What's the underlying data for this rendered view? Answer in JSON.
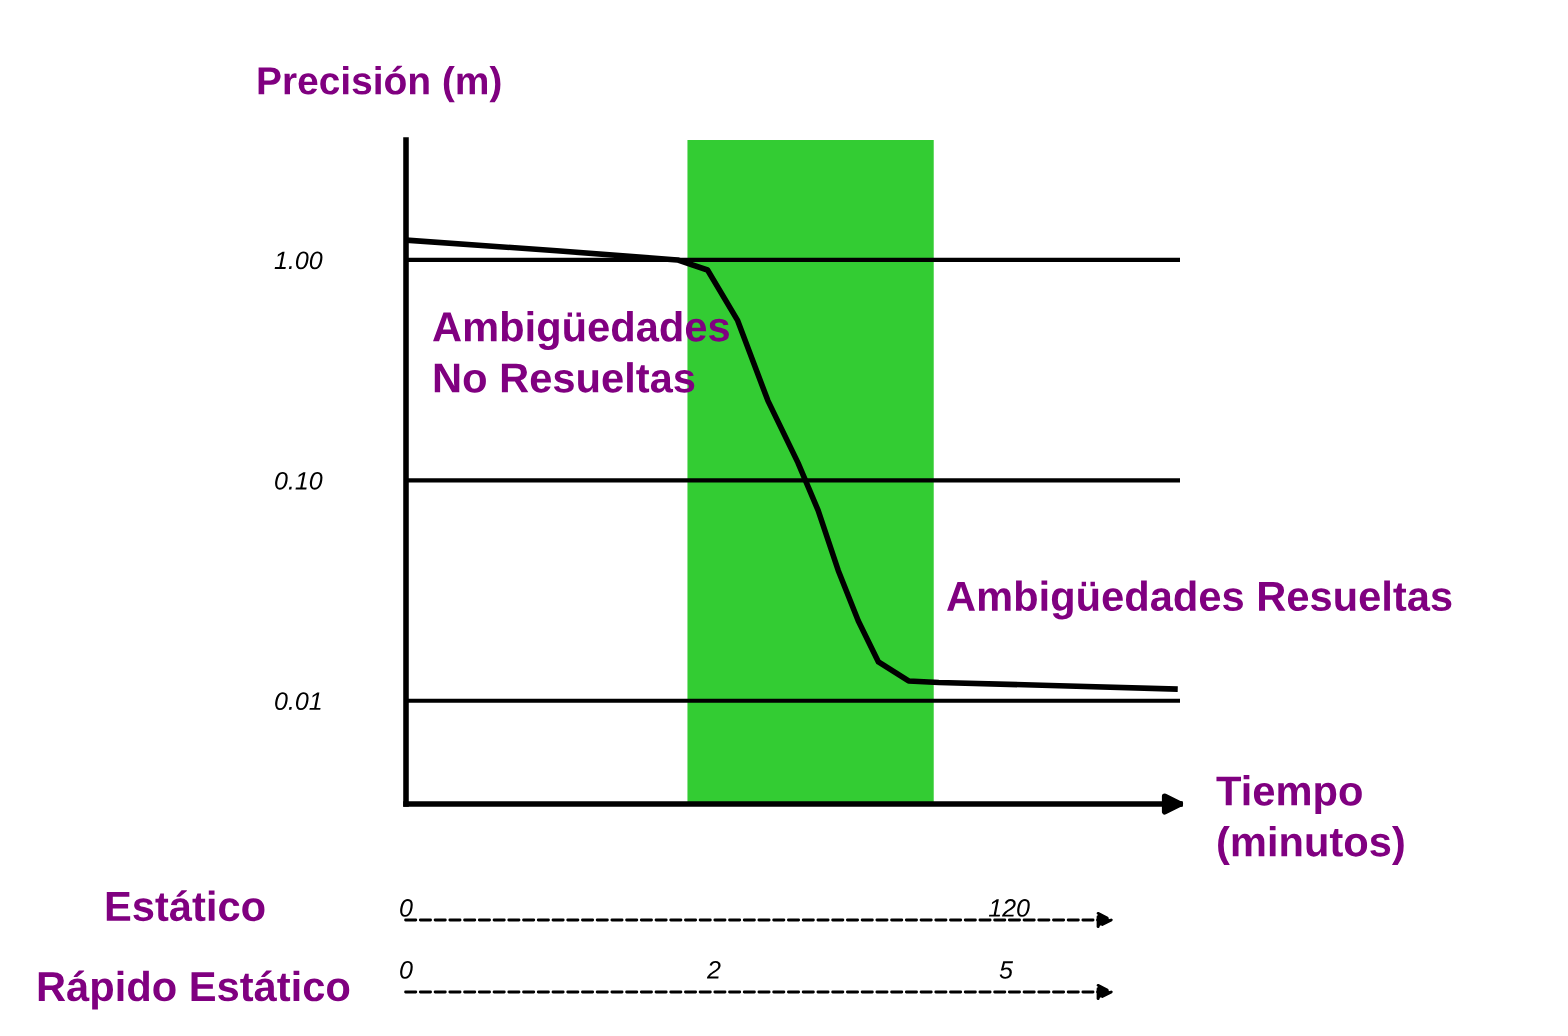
{
  "chart_data": {
    "type": "line",
    "title": "Precisión (m)",
    "xlabel": "Tiempo\n(minutos)",
    "x": [
      0,
      30,
      54,
      60,
      66,
      72,
      78,
      82,
      86,
      90,
      94,
      100,
      106,
      130,
      153
    ],
    "series": [
      {
        "color": "#000000",
        "values": [
          1.23,
          1.1,
          1.0,
          0.9,
          0.53,
          0.23,
          0.12,
          0.073,
          0.039,
          0.023,
          0.015,
          0.0123,
          0.0121,
          0.0117,
          0.0113
        ]
      }
    ],
    "log": "y",
    "xlim": [
      0,
      154
    ],
    "ylim": [
      0.0034,
      3.5
    ],
    "xticks": [
      0,
      120
    ],
    "yticks": [
      {
        "value": 1,
        "label": "1.00"
      },
      {
        "value": 0.1,
        "label": "0.10"
      },
      {
        "value": 0.01,
        "label": "0.01"
      }
    ],
    "grid": "y",
    "marker": "none",
    "line_style": "solid",
    "bands": [
      {
        "axis": "x",
        "from": 56,
        "to": 105,
        "color": "#33cc33"
      }
    ],
    "annotations": [
      "Ambigüedades\nNo Resueltas",
      "Ambigüedades Resueltas",
      "Estático",
      "Rápido Estático",
      "0",
      "2",
      "5"
    ]
  }
}
